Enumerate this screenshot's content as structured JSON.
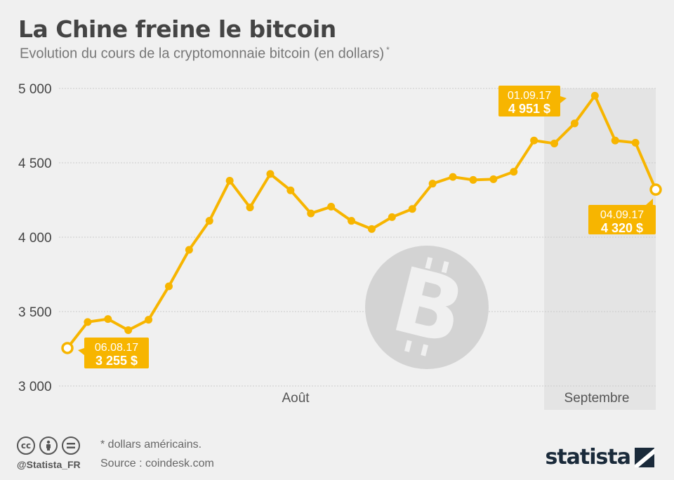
{
  "title": "La Chine freine le bitcoin",
  "subtitle": "Evolution du cours de la cryptomonnaie bitcoin (en dollars)",
  "subtitle_mark": "*",
  "colors": {
    "line": "#f7b500",
    "callout": "#f7b500",
    "shade": "#e4e4e4",
    "grid": "#cccccc",
    "watermark": "#d3d3d3"
  },
  "chart_data": {
    "type": "line",
    "title": "La Chine freine le bitcoin",
    "ylim": [
      3000,
      5000
    ],
    "yticks": [
      3000,
      3500,
      4000,
      4500,
      5000
    ],
    "ytick_labels": [
      "3 000",
      "3 500",
      "4 000",
      "4 500",
      "5 000"
    ],
    "x_group_labels": [
      "Août",
      "Septembre"
    ],
    "shaded_region": "Septembre",
    "grid": true,
    "series": [
      {
        "values": [
          3255,
          3430,
          3450,
          3375,
          3445,
          3670,
          3915,
          4110,
          4380,
          4200,
          4425,
          4315,
          4160,
          4205,
          4110,
          4055,
          4135,
          4190,
          4360,
          4405,
          4385,
          4390,
          4440,
          4650,
          4630,
          4765,
          4951,
          4650,
          4635,
          4320
        ]
      }
    ],
    "annotations": [
      {
        "index": 0,
        "date": "06.08.17",
        "value_label": "3 255 $"
      },
      {
        "index": 26,
        "date": "01.09.17",
        "value_label": "4 951 $"
      },
      {
        "index": 29,
        "date": "04.09.17",
        "value_label": "4 320 $"
      }
    ]
  },
  "footer": {
    "note": "* dollars américains.",
    "source": "Source : coindesk.com",
    "handle": "@Statista_FR",
    "brand": "statista",
    "license_icons": [
      "cc-icon",
      "by-icon",
      "nd-icon"
    ]
  }
}
